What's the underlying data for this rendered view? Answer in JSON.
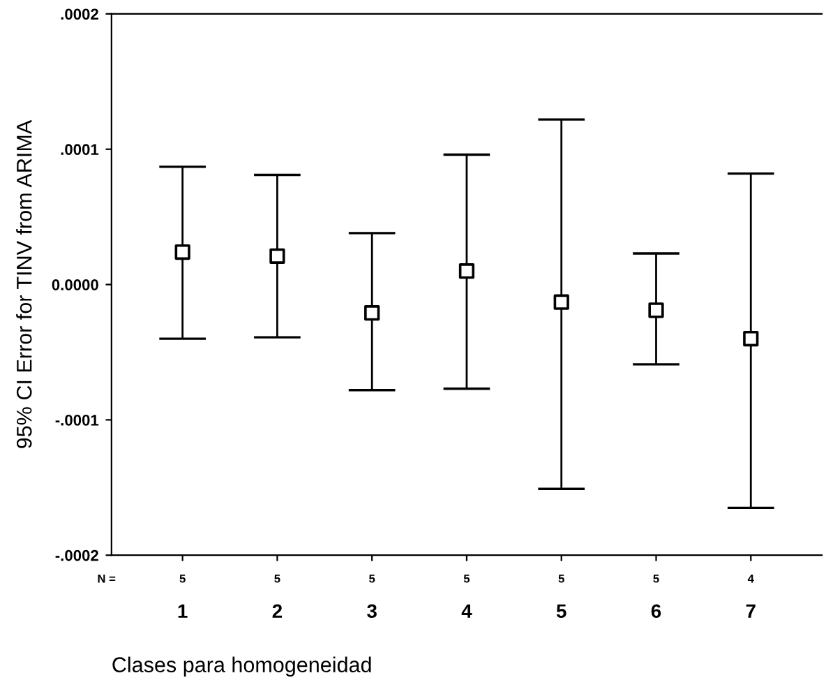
{
  "chart_data": {
    "type": "scatter",
    "ylabel": "95% CI Error for TINV from ARIMA",
    "xlabel": "Clases para homogeneidad",
    "categories": [
      "1",
      "2",
      "3",
      "4",
      "5",
      "6",
      "7"
    ],
    "series": [
      {
        "color": "#000000",
        "values": [
          2.4e-05,
          2.1e-05,
          -2.1e-05,
          1e-05,
          -1.3e-05,
          -1.9e-05,
          -4e-05
        ],
        "errors": [
          [
            -4e-05,
            8.7e-05
          ],
          [
            -3.9e-05,
            8.1e-05
          ],
          [
            -7.8e-05,
            3.8e-05
          ],
          [
            -7.7e-05,
            9.6e-05
          ],
          [
            -0.000151,
            0.000122
          ],
          [
            -5.9e-05,
            2.3e-05
          ],
          [
            -0.000165,
            8.2e-05
          ]
        ]
      }
    ],
    "marker": "square",
    "ylim": [
      -0.0002,
      0.0002
    ],
    "yticks": [
      {
        "value": 0.0002,
        "label": ".0002"
      },
      {
        "value": 0.0001,
        "label": ".0001"
      },
      {
        "value": 0,
        "label": "0.0000"
      },
      {
        "value": -0.0001,
        "label": "-.0001"
      },
      {
        "value": -0.0002,
        "label": "-.0002"
      }
    ],
    "grid": false,
    "legend": false,
    "annotations": [
      "N =",
      "5",
      "5",
      "5",
      "5",
      "5",
      "5",
      "4"
    ]
  }
}
